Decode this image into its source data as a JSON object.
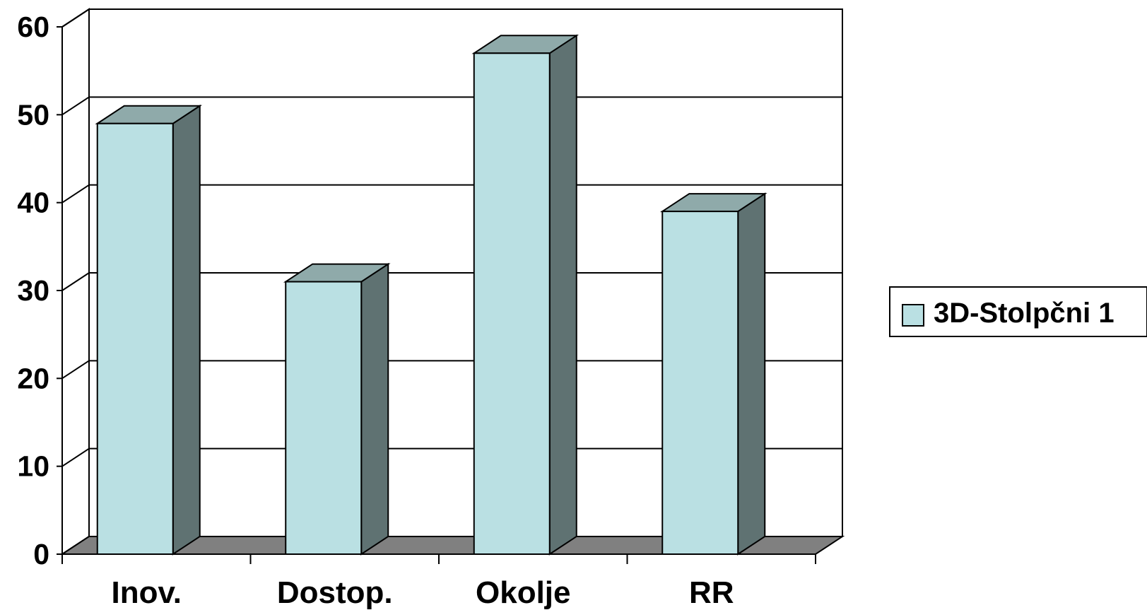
{
  "chart_data": {
    "type": "bar",
    "style": "3d-column",
    "categories": [
      "Inov.",
      "Dostop.",
      "Okolje",
      "RR"
    ],
    "series": [
      {
        "name": "3D-Stolpčni 1",
        "values": [
          49,
          31,
          57,
          39
        ]
      }
    ],
    "yticks": [
      "0",
      "10",
      "20",
      "30",
      "40",
      "50",
      "60"
    ],
    "ylim": [
      0,
      60
    ],
    "grid": true,
    "legend_position": "right",
    "colors": {
      "bar_front": "#bae0e3",
      "bar_top": "#8faaaa",
      "bar_side": "#5f7272",
      "floor": "#808080",
      "gridline": "#000000",
      "legend_swatch": "#bae0e3"
    }
  }
}
